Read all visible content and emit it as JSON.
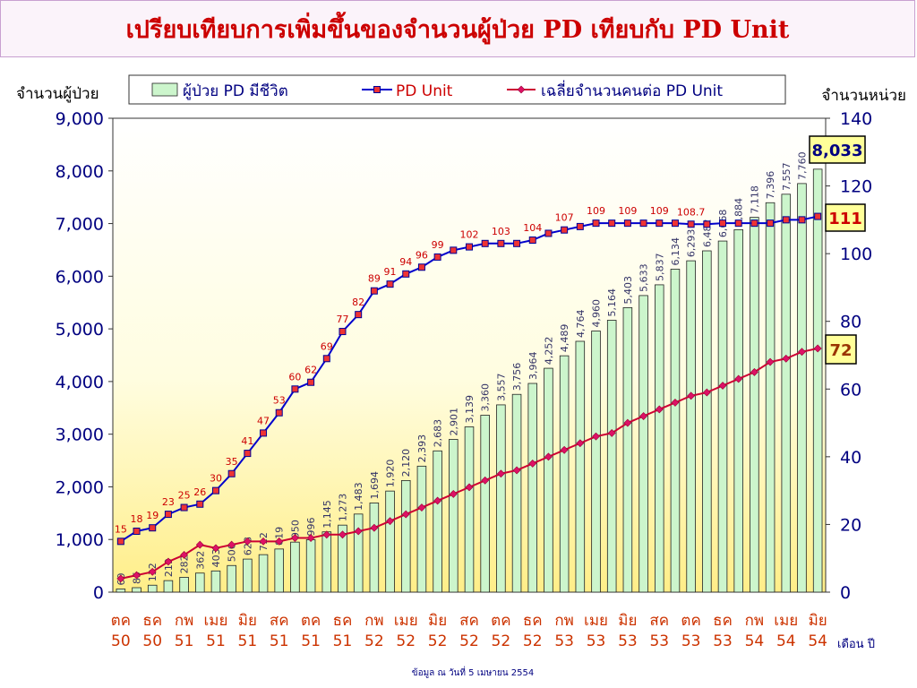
{
  "title": "เปรียบเทียบการเพิ่มขึ้นของจำนวนผู้ป่วย PD เทียบกับ PD Unit",
  "footer_note": "ข้อมูล ณ วันที่ 5 เมษายน 2554",
  "chart_data": {
    "type": "bar",
    "ylabel_left": "จำนวนผู้ป่วย",
    "ylabel_right": "จำนวนหน่วย",
    "xlabel": "เดือน ปี",
    "ylim_left": [
      0,
      9000
    ],
    "yticks_left": [
      "0",
      "1,000",
      "2,000",
      "3,000",
      "4,000",
      "5,000",
      "6,000",
      "7,000",
      "8,000",
      "9,000"
    ],
    "ylim_right": [
      0,
      140
    ],
    "yticks_right": [
      "0",
      "20",
      "40",
      "60",
      "80",
      "100",
      "120",
      "140"
    ],
    "legend_placement": "top",
    "x_tick_labels": [
      {
        "month": "ตค",
        "year": "50"
      },
      {
        "month": "ธค",
        "year": "50"
      },
      {
        "month": "กพ",
        "year": "51"
      },
      {
        "month": "เมย",
        "year": "51"
      },
      {
        "month": "มิย",
        "year": "51"
      },
      {
        "month": "สค",
        "year": "51"
      },
      {
        "month": "ตค",
        "year": "51"
      },
      {
        "month": "ธค",
        "year": "51"
      },
      {
        "month": "กพ",
        "year": "52"
      },
      {
        "month": "เมย",
        "year": "52"
      },
      {
        "month": "มิย",
        "year": "52"
      },
      {
        "month": "สค",
        "year": "52"
      },
      {
        "month": "ตค",
        "year": "52"
      },
      {
        "month": "ธค",
        "year": "52"
      },
      {
        "month": "กพ",
        "year": "53"
      },
      {
        "month": "เมย",
        "year": "53"
      },
      {
        "month": "มิย",
        "year": "53"
      },
      {
        "month": "สค",
        "year": "53"
      },
      {
        "month": "ตค",
        "year": "53"
      },
      {
        "month": "ธค",
        "year": "53"
      },
      {
        "month": "กพ",
        "year": "54"
      },
      {
        "month": "เมย",
        "year": "54"
      },
      {
        "month": "มิย",
        "year": "54"
      }
    ],
    "series": [
      {
        "name": "ผู้ป่วย PD มีชีวิต",
        "type": "bar",
        "axis": "left",
        "color": "#ccf5cc",
        "values": [
          60,
          85,
          132,
          219,
          282,
          362,
          403,
          506,
          628,
          712,
          819,
          950,
          996,
          1145,
          1273,
          1483,
          1694,
          1920,
          2120,
          2393,
          2683,
          2901,
          3139,
          3360,
          3557,
          3756,
          3964,
          4252,
          4489,
          4764,
          4960,
          5164,
          5403,
          5633,
          5837,
          6134,
          6293,
          6482,
          6668,
          6884,
          7118,
          7396,
          7557,
          7760,
          8033
        ],
        "labels": [
          "60",
          "85",
          "132",
          "219",
          "282",
          "362",
          "403",
          "506",
          "628",
          "712",
          "819",
          "950",
          "996",
          "1,145",
          "1,273",
          "1,483",
          "1,694",
          "1,920",
          "2,120",
          "2,393",
          "2,683",
          "2,901",
          "3,139",
          "3,360",
          "3,557",
          "3,756",
          "3,964",
          "4,252",
          "4,489",
          "4,764",
          "4,960",
          "5,164",
          "5,403",
          "5,633",
          "5,837",
          "6,134",
          "6,293",
          "6,482",
          "6,668",
          "6,884",
          "7,118",
          "7,396",
          "7,557",
          "7,760",
          ""
        ]
      },
      {
        "name": "PD Unit",
        "type": "line",
        "axis": "right",
        "color": "#0000cc",
        "values": [
          15,
          18,
          19,
          23,
          25,
          26,
          30,
          35,
          41,
          47,
          53,
          60,
          62,
          69,
          77,
          82,
          89,
          91,
          94,
          96,
          99,
          101,
          102,
          103,
          103,
          103,
          104,
          106,
          107,
          108,
          109,
          109,
          109,
          109,
          109,
          109,
          108.7,
          108.7,
          109,
          109,
          109,
          109,
          110,
          110,
          111
        ],
        "labels": [
          "15",
          "18",
          "19",
          "23",
          "25",
          "26",
          "30",
          "35",
          "41",
          "47",
          "53",
          "60",
          "62",
          "69",
          "77",
          "82",
          "89",
          "91",
          "94",
          "96",
          "99",
          "",
          "102",
          "",
          "103",
          "",
          "104",
          "",
          "107",
          "",
          "109",
          "",
          "109",
          "",
          "109",
          "",
          "108.7",
          "",
          "",
          "",
          "",
          "",
          "",
          "",
          ""
        ]
      },
      {
        "name": "เฉลี่ยจำนวนคนต่อ PD Unit",
        "type": "line",
        "axis": "right",
        "color": "#cc0033",
        "values": [
          4,
          5,
          6,
          9,
          11,
          14,
          13,
          14,
          15,
          15,
          15,
          16,
          16,
          17,
          17,
          18,
          19,
          21,
          23,
          25,
          27,
          29,
          31,
          33,
          35,
          36,
          38,
          40,
          42,
          44,
          46,
          47,
          50,
          52,
          54,
          56,
          58,
          59,
          61,
          63,
          65,
          68,
          69,
          71,
          72
        ]
      }
    ],
    "callouts": [
      {
        "text": "8,033",
        "series": "ผู้ป่วย PD มีชีวิต",
        "color": "#000080",
        "bg": "#ffff99",
        "border": "#000000"
      },
      {
        "text": "111",
        "series": "PD Unit",
        "color": "#cc0000",
        "bg": "#ffff99",
        "border": "#000000"
      },
      {
        "text": "72",
        "series": "เฉลี่ยจำนวนคนต่อ PD Unit",
        "color": "#993300",
        "bg": "#ffff99",
        "border": "#000000"
      }
    ]
  }
}
